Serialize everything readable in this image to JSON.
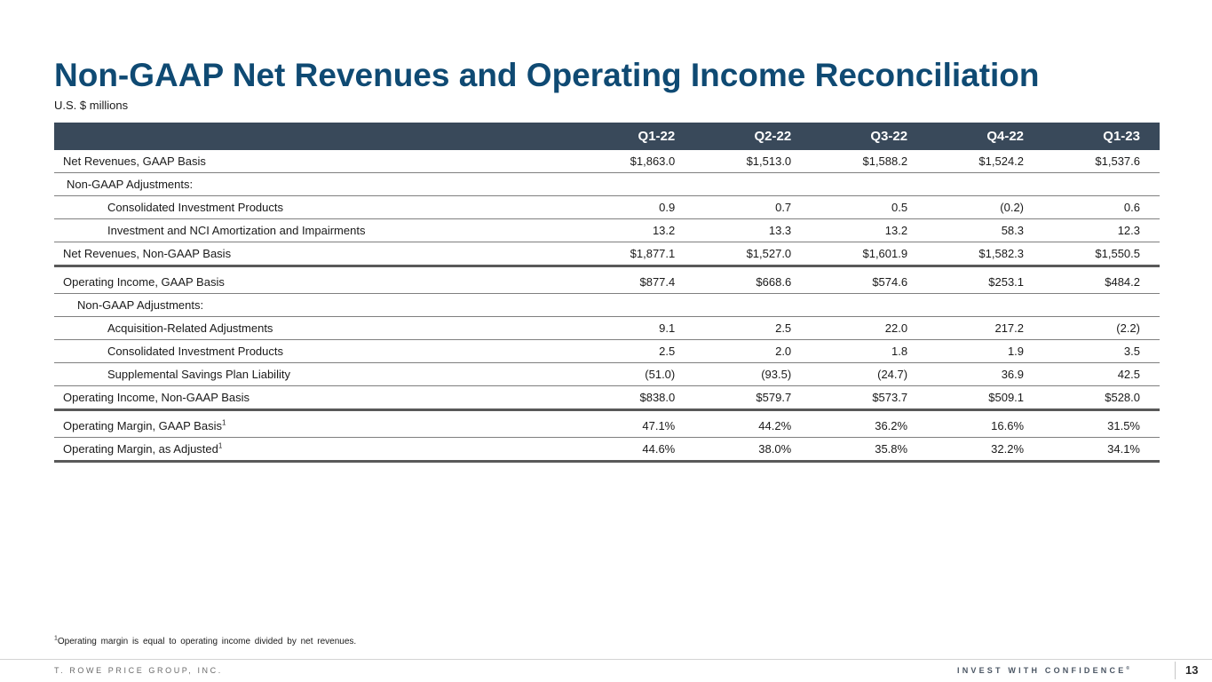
{
  "header": {
    "title": "Non-GAAP Net Revenues and Operating Income Reconciliation",
    "subtitle": "U.S. $ millions"
  },
  "table": {
    "columns": [
      "Q1-22",
      "Q2-22",
      "Q3-22",
      "Q4-22",
      "Q1-23"
    ],
    "rows": [
      {
        "label": "Net Revenues, GAAP Basis",
        "values": [
          "$1,863.0",
          "$1,513.0",
          "$1,588.2",
          "$1,524.2",
          "$1,537.6"
        ]
      },
      {
        "label": "Non-GAAP Adjustments:",
        "values": [
          "",
          "",
          "",
          "",
          ""
        ]
      },
      {
        "label": "Consolidated Investment Products",
        "values": [
          "0.9",
          "0.7",
          "0.5",
          "(0.2)",
          "0.6"
        ]
      },
      {
        "label": "Investment and NCI Amortization and Impairments",
        "values": [
          "13.2",
          "13.3",
          "13.2",
          "58.3",
          "12.3"
        ]
      },
      {
        "label": "Net Revenues, Non-GAAP Basis",
        "values": [
          "$1,877.1",
          "$1,527.0",
          "$1,601.9",
          "$1,582.3",
          "$1,550.5"
        ]
      },
      {
        "label": "Operating Income, GAAP Basis",
        "values": [
          "$877.4",
          "$668.6",
          "$574.6",
          "$253.1",
          "$484.2"
        ]
      },
      {
        "label": "Non-GAAP Adjustments:",
        "values": [
          "",
          "",
          "",
          "",
          ""
        ]
      },
      {
        "label": "Acquisition-Related Adjustments",
        "values": [
          "9.1",
          "2.5",
          "22.0",
          "217.2",
          "(2.2)"
        ]
      },
      {
        "label": "Consolidated Investment Products",
        "values": [
          "2.5",
          "2.0",
          "1.8",
          "1.9",
          "3.5"
        ]
      },
      {
        "label": "Supplemental Savings Plan Liability",
        "values": [
          "(51.0)",
          "(93.5)",
          "(24.7)",
          "36.9",
          "42.5"
        ]
      },
      {
        "label": "Operating Income, Non-GAAP Basis",
        "values": [
          "$838.0",
          "$579.7",
          "$573.7",
          "$509.1",
          "$528.0"
        ]
      },
      {
        "label": "Operating Margin, GAAP Basis",
        "footnote": "1",
        "values": [
          "47.1%",
          "44.2%",
          "36.2%",
          "16.6%",
          "31.5%"
        ]
      },
      {
        "label": "Operating Margin, as Adjusted",
        "footnote": "1",
        "values": [
          "44.6%",
          "38.0%",
          "35.8%",
          "32.2%",
          "34.1%"
        ]
      }
    ]
  },
  "footnote": {
    "marker": "1",
    "text": "Operating margin is equal to operating income divided by net revenues."
  },
  "footer": {
    "company": "T. ROWE PRICE GROUP, INC.",
    "tagline": "INVEST WITH CONFIDENCE",
    "tagline_mark": "®",
    "page_number": "13"
  }
}
